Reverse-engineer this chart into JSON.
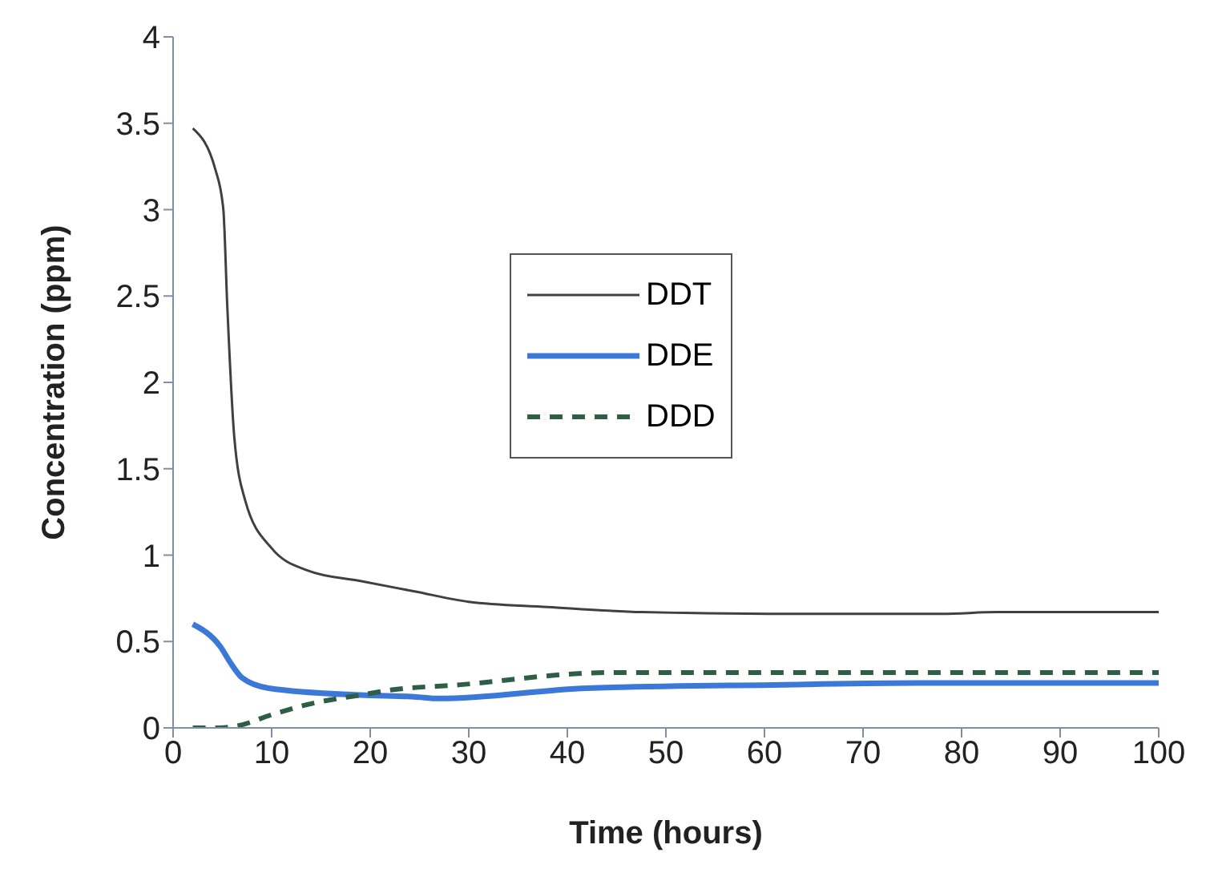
{
  "chart_data": {
    "type": "line",
    "xlabel": "Time (hours)",
    "ylabel": "Concentration (ppm)",
    "xlim": [
      0,
      100
    ],
    "xticks": [
      0,
      10,
      20,
      30,
      40,
      50,
      60,
      70,
      80,
      90,
      100
    ],
    "ylim": [
      0,
      4
    ],
    "yticks": [
      0,
      0.5,
      1,
      1.5,
      2,
      2.5,
      3,
      3.5,
      4
    ],
    "grid": false,
    "legend": "center",
    "marker": "none",
    "series": [
      {
        "name": "DDT",
        "color": "#404040",
        "line_style": "solid",
        "x": [
          2,
          4.3,
          5.1,
          5.5,
          6.2,
          7.3,
          10,
          13.7,
          19,
          24.5,
          30,
          38,
          47.6,
          60.5,
          78,
          83.6,
          100
        ],
        "values": [
          3.47,
          3.23,
          3.0,
          2.44,
          1.69,
          1.32,
          1.04,
          0.91,
          0.85,
          0.79,
          0.73,
          0.7,
          0.67,
          0.66,
          0.66,
          0.67,
          0.67
        ]
      },
      {
        "name": "DDE",
        "color": "#3b78d8",
        "line_style": "solid",
        "x": [
          2,
          4.8,
          5.9,
          7,
          9.7,
          19,
          24.5,
          27,
          42,
          62,
          75.5,
          100
        ],
        "values": [
          0.6,
          0.47,
          0.37,
          0.29,
          0.23,
          0.19,
          0.18,
          0.17,
          0.23,
          0.25,
          0.26,
          0.26
        ]
      },
      {
        "name": "DDD",
        "color": "#2e5e45",
        "line_style": "dashed",
        "x": [
          2,
          4.7,
          6.4,
          10.2,
          14,
          19,
          22.2,
          29.2,
          40,
          43.8,
          100
        ],
        "values": [
          0,
          0,
          0.01,
          0.08,
          0.14,
          0.19,
          0.22,
          0.25,
          0.31,
          0.32,
          0.32
        ]
      }
    ]
  }
}
